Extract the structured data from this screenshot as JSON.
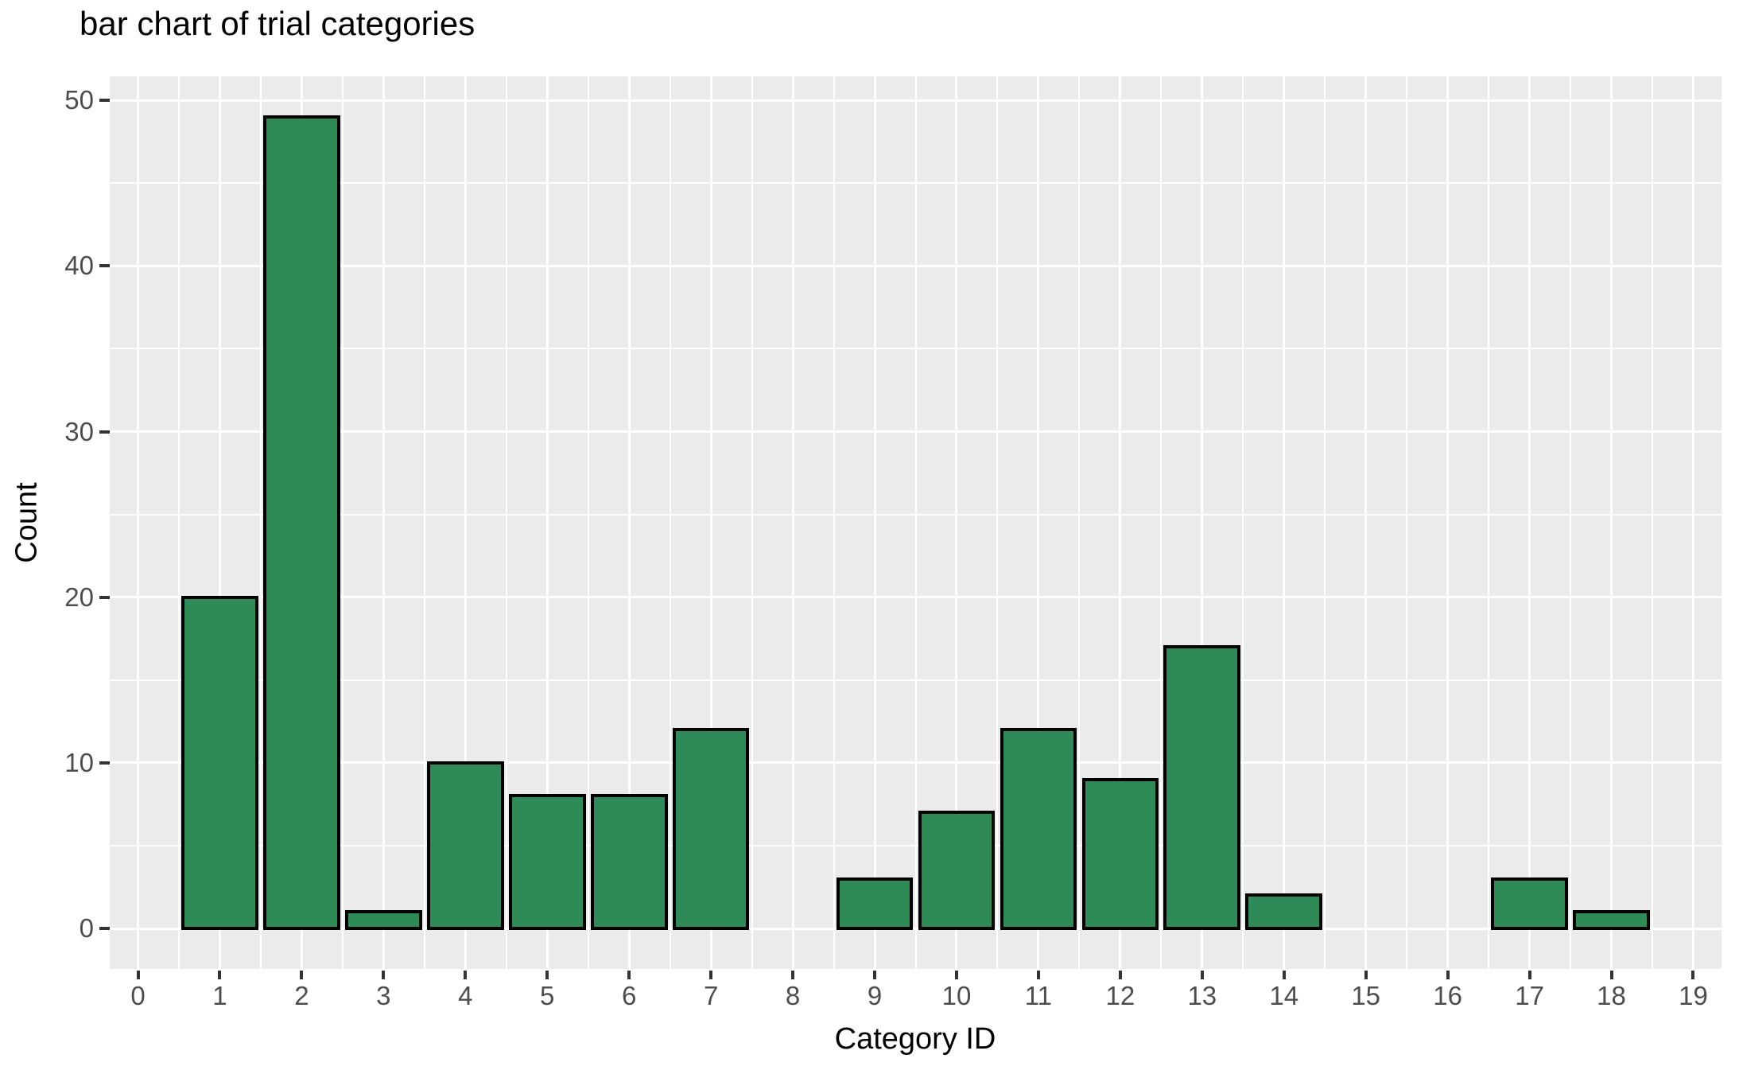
{
  "chart_data": {
    "type": "bar",
    "title": "bar chart of trial categories",
    "xlabel": "Category ID",
    "ylabel": "Count",
    "categories": [
      0,
      1,
      2,
      3,
      4,
      5,
      6,
      7,
      8,
      9,
      10,
      11,
      12,
      13,
      14,
      15,
      16,
      17,
      18,
      19
    ],
    "values": [
      0,
      20,
      49,
      1,
      10,
      8,
      8,
      12,
      0,
      3,
      7,
      12,
      9,
      17,
      2,
      0,
      0,
      3,
      1,
      0
    ],
    "x_ticks": [
      0,
      1,
      2,
      3,
      4,
      5,
      6,
      7,
      8,
      9,
      10,
      11,
      12,
      13,
      14,
      15,
      16,
      17,
      18,
      19
    ],
    "y_ticks": [
      0,
      10,
      20,
      30,
      40,
      50
    ],
    "y_minor_ticks": [
      5,
      15,
      25,
      35,
      45
    ],
    "x_minor_ticks": [
      0.5,
      1.5,
      2.5,
      3.5,
      4.5,
      5.5,
      6.5,
      7.5,
      8.5,
      9.5,
      10.5,
      11.5,
      12.5,
      13.5,
      14.5,
      15.5,
      16.5,
      17.5,
      18.5
    ],
    "xlim": [
      -0.345,
      19.345
    ],
    "ylim": [
      -2.45,
      51.45
    ],
    "bar_width": 0.9,
    "grid": true,
    "legend": false,
    "colors": {
      "bar_fill": "#2E8B57",
      "bar_stroke": "#000000",
      "panel_background": "#EBEBEB",
      "gridline": "#FFFFFF",
      "tick_label": "#4D4D4D",
      "tick_mark": "#333333",
      "title": "#000000",
      "axis_title": "#000000",
      "background": "#FFFFFF"
    }
  }
}
